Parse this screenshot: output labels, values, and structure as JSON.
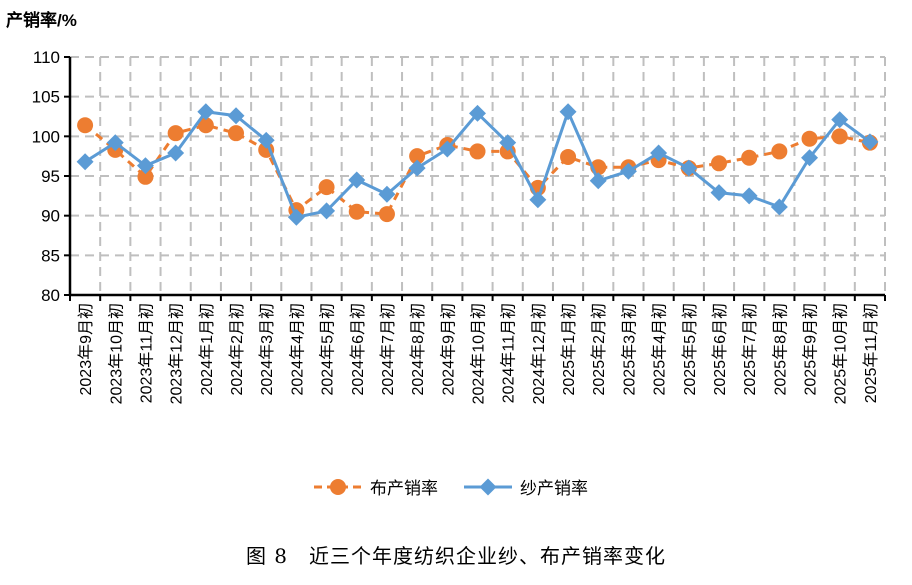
{
  "chart_data": {
    "type": "line",
    "ylabel": "产销率/%",
    "ylim": [
      80,
      110
    ],
    "yticks": [
      80,
      85,
      90,
      95,
      100,
      105,
      110
    ],
    "grid": true,
    "legend_position": "bottom",
    "categories": [
      "2023年9月初",
      "2023年10月初",
      "2023年11月初",
      "2023年12月初",
      "2024年1月初",
      "2024年2月初",
      "2024年3月初",
      "2024年4月初",
      "2024年5月初",
      "2024年6月初",
      "2024年7月初",
      "2024年8月初",
      "2024年9月初",
      "2024年10月初",
      "2024年11月初",
      "2024年12月初",
      "2025年1月初",
      "2025年2月初",
      "2025年3月初",
      "2025年4月初",
      "2025年5月初",
      "2025年6月初",
      "2025年7月初",
      "2025年8月初",
      "2025年9月初",
      "2025年10月初",
      "2025年11月初"
    ],
    "series": [
      {
        "name": "布产销率",
        "color": "#ED7D31",
        "marker": "circle",
        "style": "dashed",
        "values": [
          101.4,
          98.3,
          94.9,
          100.4,
          101.4,
          100.4,
          98.3,
          90.7,
          93.6,
          90.5,
          90.2,
          97.5,
          98.9,
          98.1,
          98.1,
          93.5,
          97.4,
          96.1,
          96.1,
          97.0,
          96.0,
          96.6,
          97.3,
          98.1,
          99.7,
          100.0,
          99.2
        ]
      },
      {
        "name": "纱产销率",
        "color": "#5B9BD5",
        "marker": "diamond",
        "style": "solid",
        "values": [
          96.8,
          99.2,
          96.3,
          97.9,
          103.1,
          102.6,
          99.5,
          89.8,
          90.6,
          94.5,
          92.7,
          96.0,
          98.4,
          102.9,
          99.2,
          92.0,
          103.1,
          94.4,
          95.6,
          97.9,
          96.0,
          92.9,
          92.5,
          91.1,
          97.3,
          102.1,
          99.3
        ]
      }
    ],
    "caption": "图 8　近三个年度纺织企业纱、布产销率变化"
  }
}
